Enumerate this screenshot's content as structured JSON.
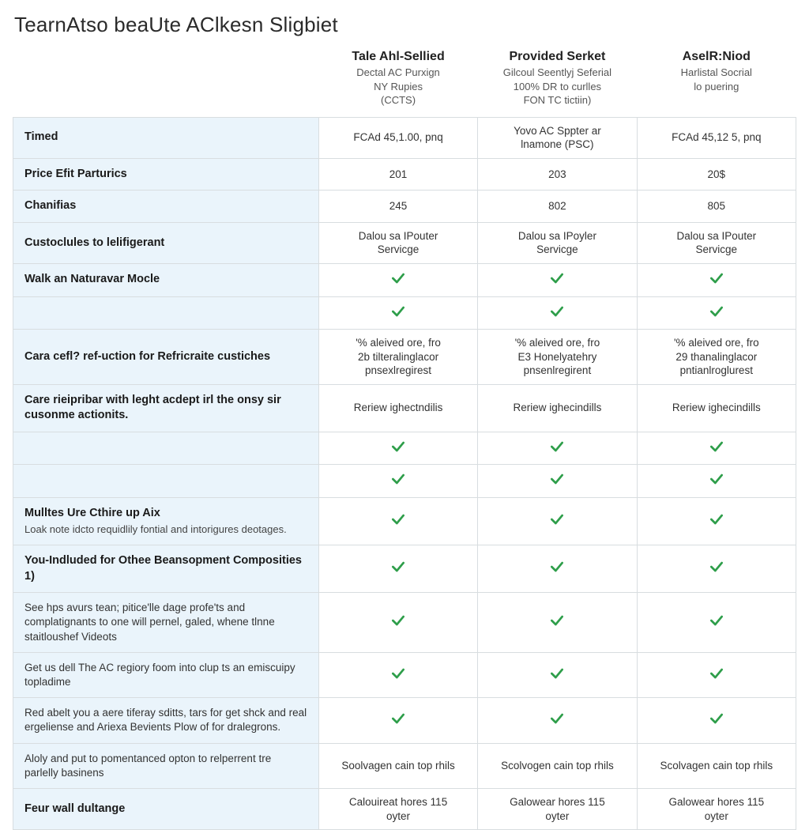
{
  "title": "TearnAtso beaUte AClkesn Sligbiet",
  "columns": [
    {
      "title": "Tale Ahl-Sellied",
      "sub": "Dectal AC Purxign\nNY Rupies\n(CCTS)"
    },
    {
      "title": "Provided Serket",
      "sub": "Gilcoul Seentlyj Seferial\n100% DR to curlles\nFON TC tictiin)"
    },
    {
      "title": "AselR:Niod",
      "sub": "Harlistal Socrial\nlo puering"
    }
  ],
  "checkColor": "#2e9e4a",
  "headerBg": "#eaf4fb",
  "borderColor": "#d8dde0",
  "rows": [
    {
      "label": "Timed",
      "bold": true,
      "cells": [
        "FCAd 45,1.00, pnq",
        "Yovo AC Sppter ar\nlnamone (PSC)",
        "FCAd 45,12 5, pnq"
      ]
    },
    {
      "label": "Price Efit Parturics",
      "bold": true,
      "cells": [
        "201",
        "203",
        "20$"
      ]
    },
    {
      "label": "Chanifias",
      "bold": true,
      "cells": [
        "245",
        "802",
        "805"
      ]
    },
    {
      "label": "Custoclules to lelifigerant",
      "bold": true,
      "cells": [
        "Dalou sa IPouter\nServicge",
        "Dalou sa IPoyler\nServicge",
        "Dalou sa IPouter\nServicge"
      ]
    },
    {
      "label": "Walk an Naturavar Mocle",
      "bold": true,
      "cells": [
        "check",
        "check",
        "check"
      ]
    },
    {
      "label": "",
      "bold": true,
      "cells": [
        "check",
        "check",
        "check"
      ]
    },
    {
      "label": "Cara cefl? ref-uction for Refricraite custiches",
      "bold": true,
      "cells": [
        "'% aleived ore, fro\n2b tilteralinglacor\npnsexlregirest",
        "'% aleived ore, fro\nE3 Honelyatehry\npnsenlregirent",
        "'% aleived ore, fro\n29 thanalinglacor\npntianlroglurest"
      ]
    },
    {
      "label": "Care rieipribar with leght acdept irl the onsy sir cusonme actionits.",
      "bold": true,
      "cells": [
        "Reriew ighectndilis",
        "Reriew ighecindills",
        "Reriew ighecindills"
      ]
    },
    {
      "label": "",
      "bold": true,
      "cells": [
        "check",
        "check",
        "check"
      ]
    },
    {
      "label": "",
      "bold": true,
      "cells": [
        "check",
        "check",
        "check"
      ]
    },
    {
      "label": "Mulltes Ure Cthire up Aix",
      "sub": "Loak note idcto requidlily fontial and intorigures deotages.",
      "bold": true,
      "cells": [
        "check",
        "check",
        "check"
      ]
    },
    {
      "label": "You-Indluded for Othee Beansopment Composities 1)",
      "bold": true,
      "cells": [
        "check",
        "check",
        "check"
      ]
    },
    {
      "label": "See hps avurs tean; pitice'lle dage profe'ts and complatignants to one will pernel, galed, whene tlnne staitloushef Videots",
      "bold": false,
      "cells": [
        "check",
        "check",
        "check"
      ]
    },
    {
      "label": "Get us dell The AC regiory foom into clup ts an emiscuipy topladime",
      "bold": false,
      "cells": [
        "check",
        "check",
        "check"
      ]
    },
    {
      "label": "Red abelt you a aere tiferay sditts, tars for get shck and real ergeliense and Ariexa Bevients Plow of for dralegrons.",
      "bold": false,
      "cells": [
        "check",
        "check",
        "check"
      ]
    },
    {
      "label": "Aloly and put to pomentanced opton to relperrent tre parlelly basinens",
      "bold": false,
      "cells": [
        "Soolvagen cain top rhils",
        "Scolvogen cain top rhils",
        "Scolvagen cain top rhils"
      ]
    },
    {
      "label": "Feur wall dultange",
      "bold": true,
      "cells": [
        "Calouireat hores 115\noyter",
        "Galowear hores 115\noyter",
        "Galowear hores 115\noyter"
      ]
    }
  ]
}
